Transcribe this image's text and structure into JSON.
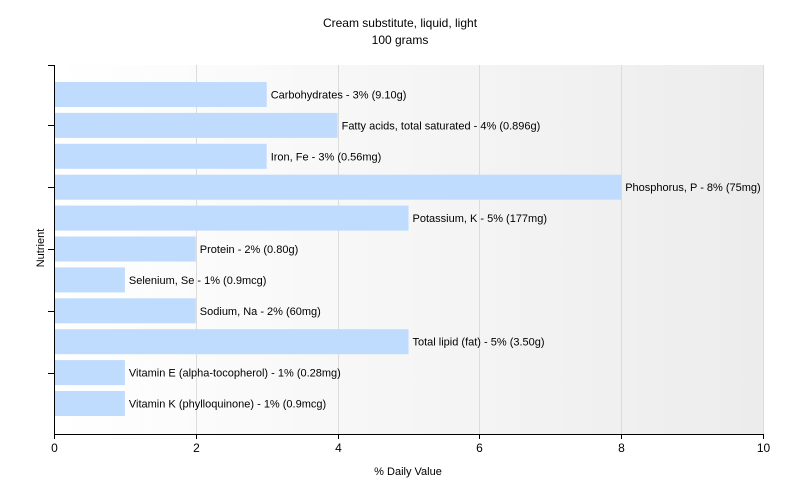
{
  "chart_data": {
    "type": "bar",
    "orientation": "horizontal",
    "title": "Cream substitute, liquid, light",
    "subtitle": "100 grams",
    "xlabel": "% Daily Value",
    "ylabel": "Nutrient",
    "xlim": [
      0,
      10
    ],
    "xticks": [
      "0",
      "2",
      "4",
      "6",
      "8",
      "10"
    ],
    "grid": "vertical",
    "bar_color": "#bfdbfe",
    "categories": [
      "Carbohydrates",
      "Fatty acids, total saturated",
      "Iron, Fe",
      "Phosphorus, P",
      "Potassium, K",
      "Protein",
      "Selenium, Se",
      "Sodium, Na",
      "Total lipid (fat)",
      "Vitamin E (alpha-tocopherol)",
      "Vitamin K (phylloquinone)"
    ],
    "values": [
      3,
      4,
      3,
      8,
      5,
      2,
      1,
      2,
      5,
      1,
      1
    ],
    "data_labels": [
      "Carbohydrates - 3% (9.10g)",
      "Fatty acids, total saturated - 4% (0.896g)",
      "Iron, Fe - 3% (0.56mg)",
      "Phosphorus, P - 8% (75mg)",
      "Potassium, K - 5% (177mg)",
      "Protein - 2% (0.80g)",
      "Selenium, Se - 1% (0.9mcg)",
      "Sodium, Na - 2% (60mg)",
      "Total lipid (fat) - 5% (3.50g)",
      "Vitamin E (alpha-tocopherol) - 1% (0.28mg)",
      "Vitamin K (phylloquinone) - 1% (0.9mcg)"
    ]
  }
}
